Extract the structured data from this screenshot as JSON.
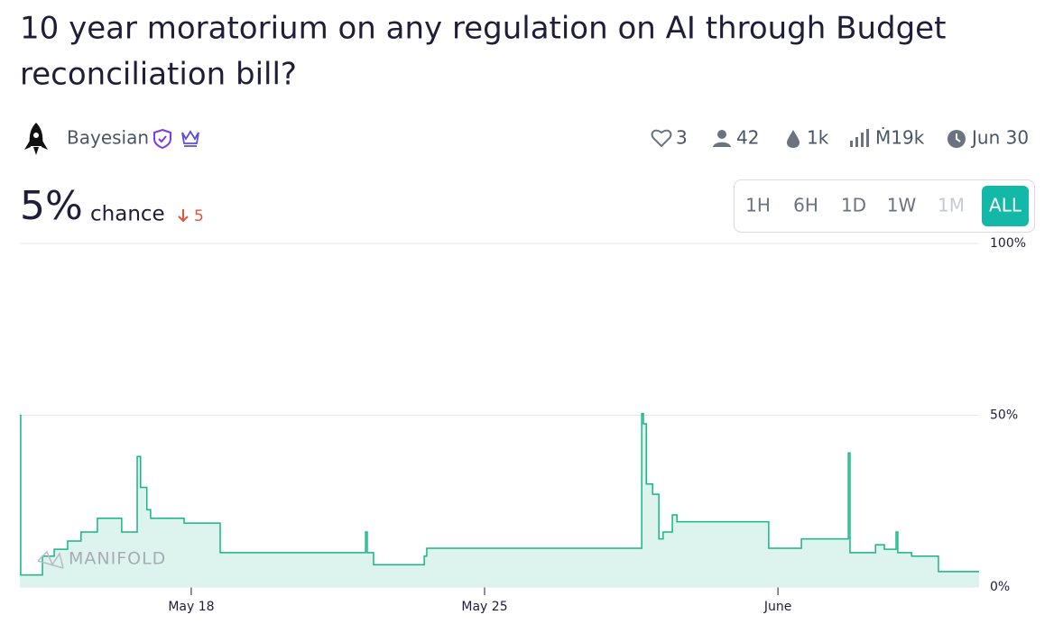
{
  "header": {
    "title_line1": "10 year moratorium on any regulation on AI through Budget",
    "title_line2": "reconciliation bill?",
    "creator": "Bayesian",
    "likes": "3",
    "traders": "42",
    "liquidity": "1k",
    "volume": "Ṁ19k",
    "close_date": "Jun 30",
    "probability": "5%",
    "probability_label": "chance",
    "change": "5"
  },
  "time_range_buttons": [
    "1H",
    "6H",
    "1D",
    "1W",
    "1M",
    "ALL"
  ],
  "chart_data": {
    "type": "line",
    "annotation": "MANIFOLD",
    "color": "#17b587",
    "grid": true,
    "x": [
      13.91,
      13.93,
      14.45,
      14.73,
      15.05,
      15.37,
      15.76,
      16.34,
      16.71,
      16.79,
      16.94,
      17.03,
      17.83,
      18.69,
      22.16,
      22.2,
      22.35,
      23.56,
      23.62,
      28.75,
      28.79,
      28.86,
      29.01,
      29.16,
      29.26,
      29.48,
      29.59,
      31.78,
      32.56,
      33.68,
      33.72,
      34.33,
      34.54,
      34.82,
      34.86,
      35.19,
      35.83,
      36.8
    ],
    "values": [
      50,
      3.5,
      9,
      11,
      13.4,
      16,
      20,
      16,
      38,
      29,
      22.5,
      20,
      18.6,
      10,
      16,
      10,
      6.5,
      9,
      11.3,
      50.5,
      47.5,
      30,
      27,
      14,
      16,
      21,
      19,
      11.3,
      14,
      39,
      10,
      12.3,
      11,
      16,
      10,
      9,
      4.5,
      4.5
    ],
    "xlim": [
      13.91,
      36.8
    ],
    "xticks": [
      {
        "value": 18,
        "label": "May 18"
      },
      {
        "value": 25,
        "label": "May 25"
      },
      {
        "value": 32,
        "label": "June"
      }
    ],
    "ylim": [
      0,
      100
    ],
    "yticks": [
      {
        "value": 0,
        "label": "0%"
      },
      {
        "value": 50,
        "label": "50%"
      },
      {
        "value": 100,
        "label": "100%"
      }
    ]
  }
}
